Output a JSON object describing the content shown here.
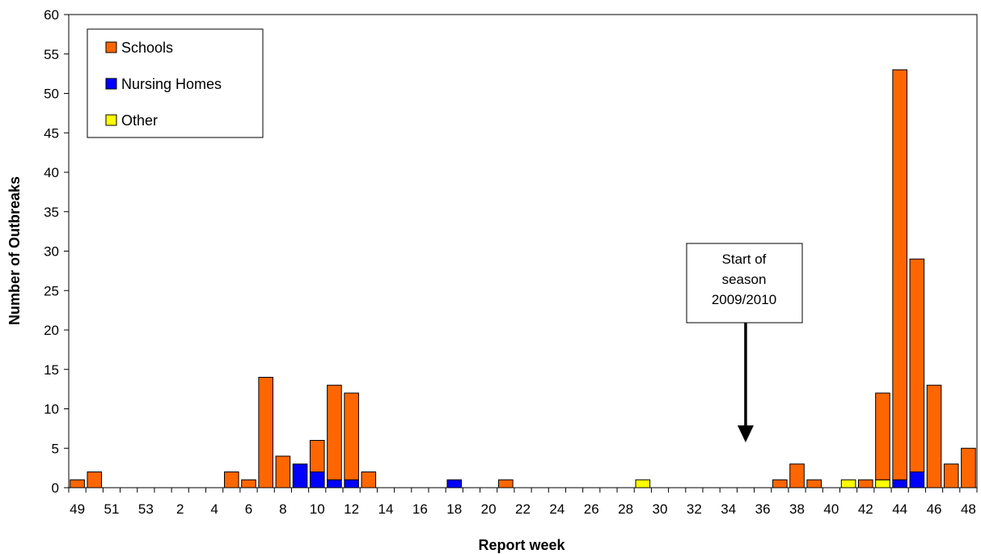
{
  "chart_data": {
    "type": "bar",
    "stacked": true,
    "xlabel": "Report week",
    "ylabel": "Number of Outbreaks",
    "ylim": [
      0,
      60
    ],
    "ytick_step": 5,
    "grid": false,
    "legend_position": "top-left",
    "categories": [
      "49",
      "50",
      "51",
      "52",
      "53",
      "1",
      "2",
      "3",
      "4",
      "5",
      "6",
      "7",
      "8",
      "9",
      "10",
      "11",
      "12",
      "13",
      "14",
      "15",
      "16",
      "17",
      "18",
      "19",
      "20",
      "21",
      "22",
      "23",
      "24",
      "25",
      "26",
      "27",
      "28",
      "29",
      "30",
      "31",
      "32",
      "33",
      "34",
      "35",
      "36",
      "37",
      "38",
      "39",
      "40",
      "41",
      "42",
      "43",
      "44",
      "45",
      "46",
      "47",
      "48"
    ],
    "x_tick_labels": [
      "49",
      "51",
      "53",
      "2",
      "4",
      "6",
      "8",
      "10",
      "12",
      "14",
      "16",
      "18",
      "20",
      "22",
      "24",
      "26",
      "28",
      "30",
      "32",
      "34",
      "36",
      "38",
      "40",
      "42",
      "44",
      "46",
      "48"
    ],
    "series": [
      {
        "name": "Nursing Homes",
        "color": "#0000ff",
        "values": [
          0,
          0,
          0,
          0,
          0,
          0,
          0,
          0,
          0,
          0,
          0,
          0,
          0,
          3,
          2,
          1,
          1,
          0,
          0,
          0,
          0,
          0,
          1,
          0,
          0,
          0,
          0,
          0,
          0,
          0,
          0,
          0,
          0,
          0,
          0,
          0,
          0,
          0,
          0,
          0,
          0,
          0,
          0,
          0,
          0,
          0,
          0,
          0,
          1,
          2,
          0,
          0,
          0
        ]
      },
      {
        "name": "Other",
        "color": "#ffff00",
        "values": [
          0,
          0,
          0,
          0,
          0,
          0,
          0,
          0,
          0,
          0,
          0,
          0,
          0,
          0,
          0,
          0,
          0,
          0,
          0,
          0,
          0,
          0,
          0,
          0,
          0,
          0,
          0,
          0,
          0,
          0,
          0,
          0,
          0,
          1,
          0,
          0,
          0,
          0,
          0,
          0,
          0,
          0,
          0,
          0,
          0,
          1,
          0,
          1,
          0,
          0,
          0,
          0,
          0
        ]
      },
      {
        "name": "Schools",
        "color": "#ff6600",
        "values": [
          1,
          2,
          0,
          0,
          0,
          0,
          0,
          0,
          0,
          2,
          1,
          14,
          4,
          0,
          4,
          12,
          11,
          2,
          0,
          0,
          0,
          0,
          0,
          0,
          0,
          1,
          0,
          0,
          0,
          0,
          0,
          0,
          0,
          0,
          0,
          0,
          0,
          0,
          0,
          0,
          0,
          1,
          3,
          1,
          0,
          0,
          1,
          11,
          52,
          27,
          13,
          3,
          5
        ]
      }
    ],
    "legend": [
      {
        "label": "Schools",
        "color": "#ff6600"
      },
      {
        "label": "Nursing Homes",
        "color": "#0000ff"
      },
      {
        "label": "Other",
        "color": "#ffff00"
      }
    ],
    "annotation": {
      "lines": [
        "Start of",
        "season",
        "2009/2010"
      ],
      "points_to_week": "35"
    }
  }
}
